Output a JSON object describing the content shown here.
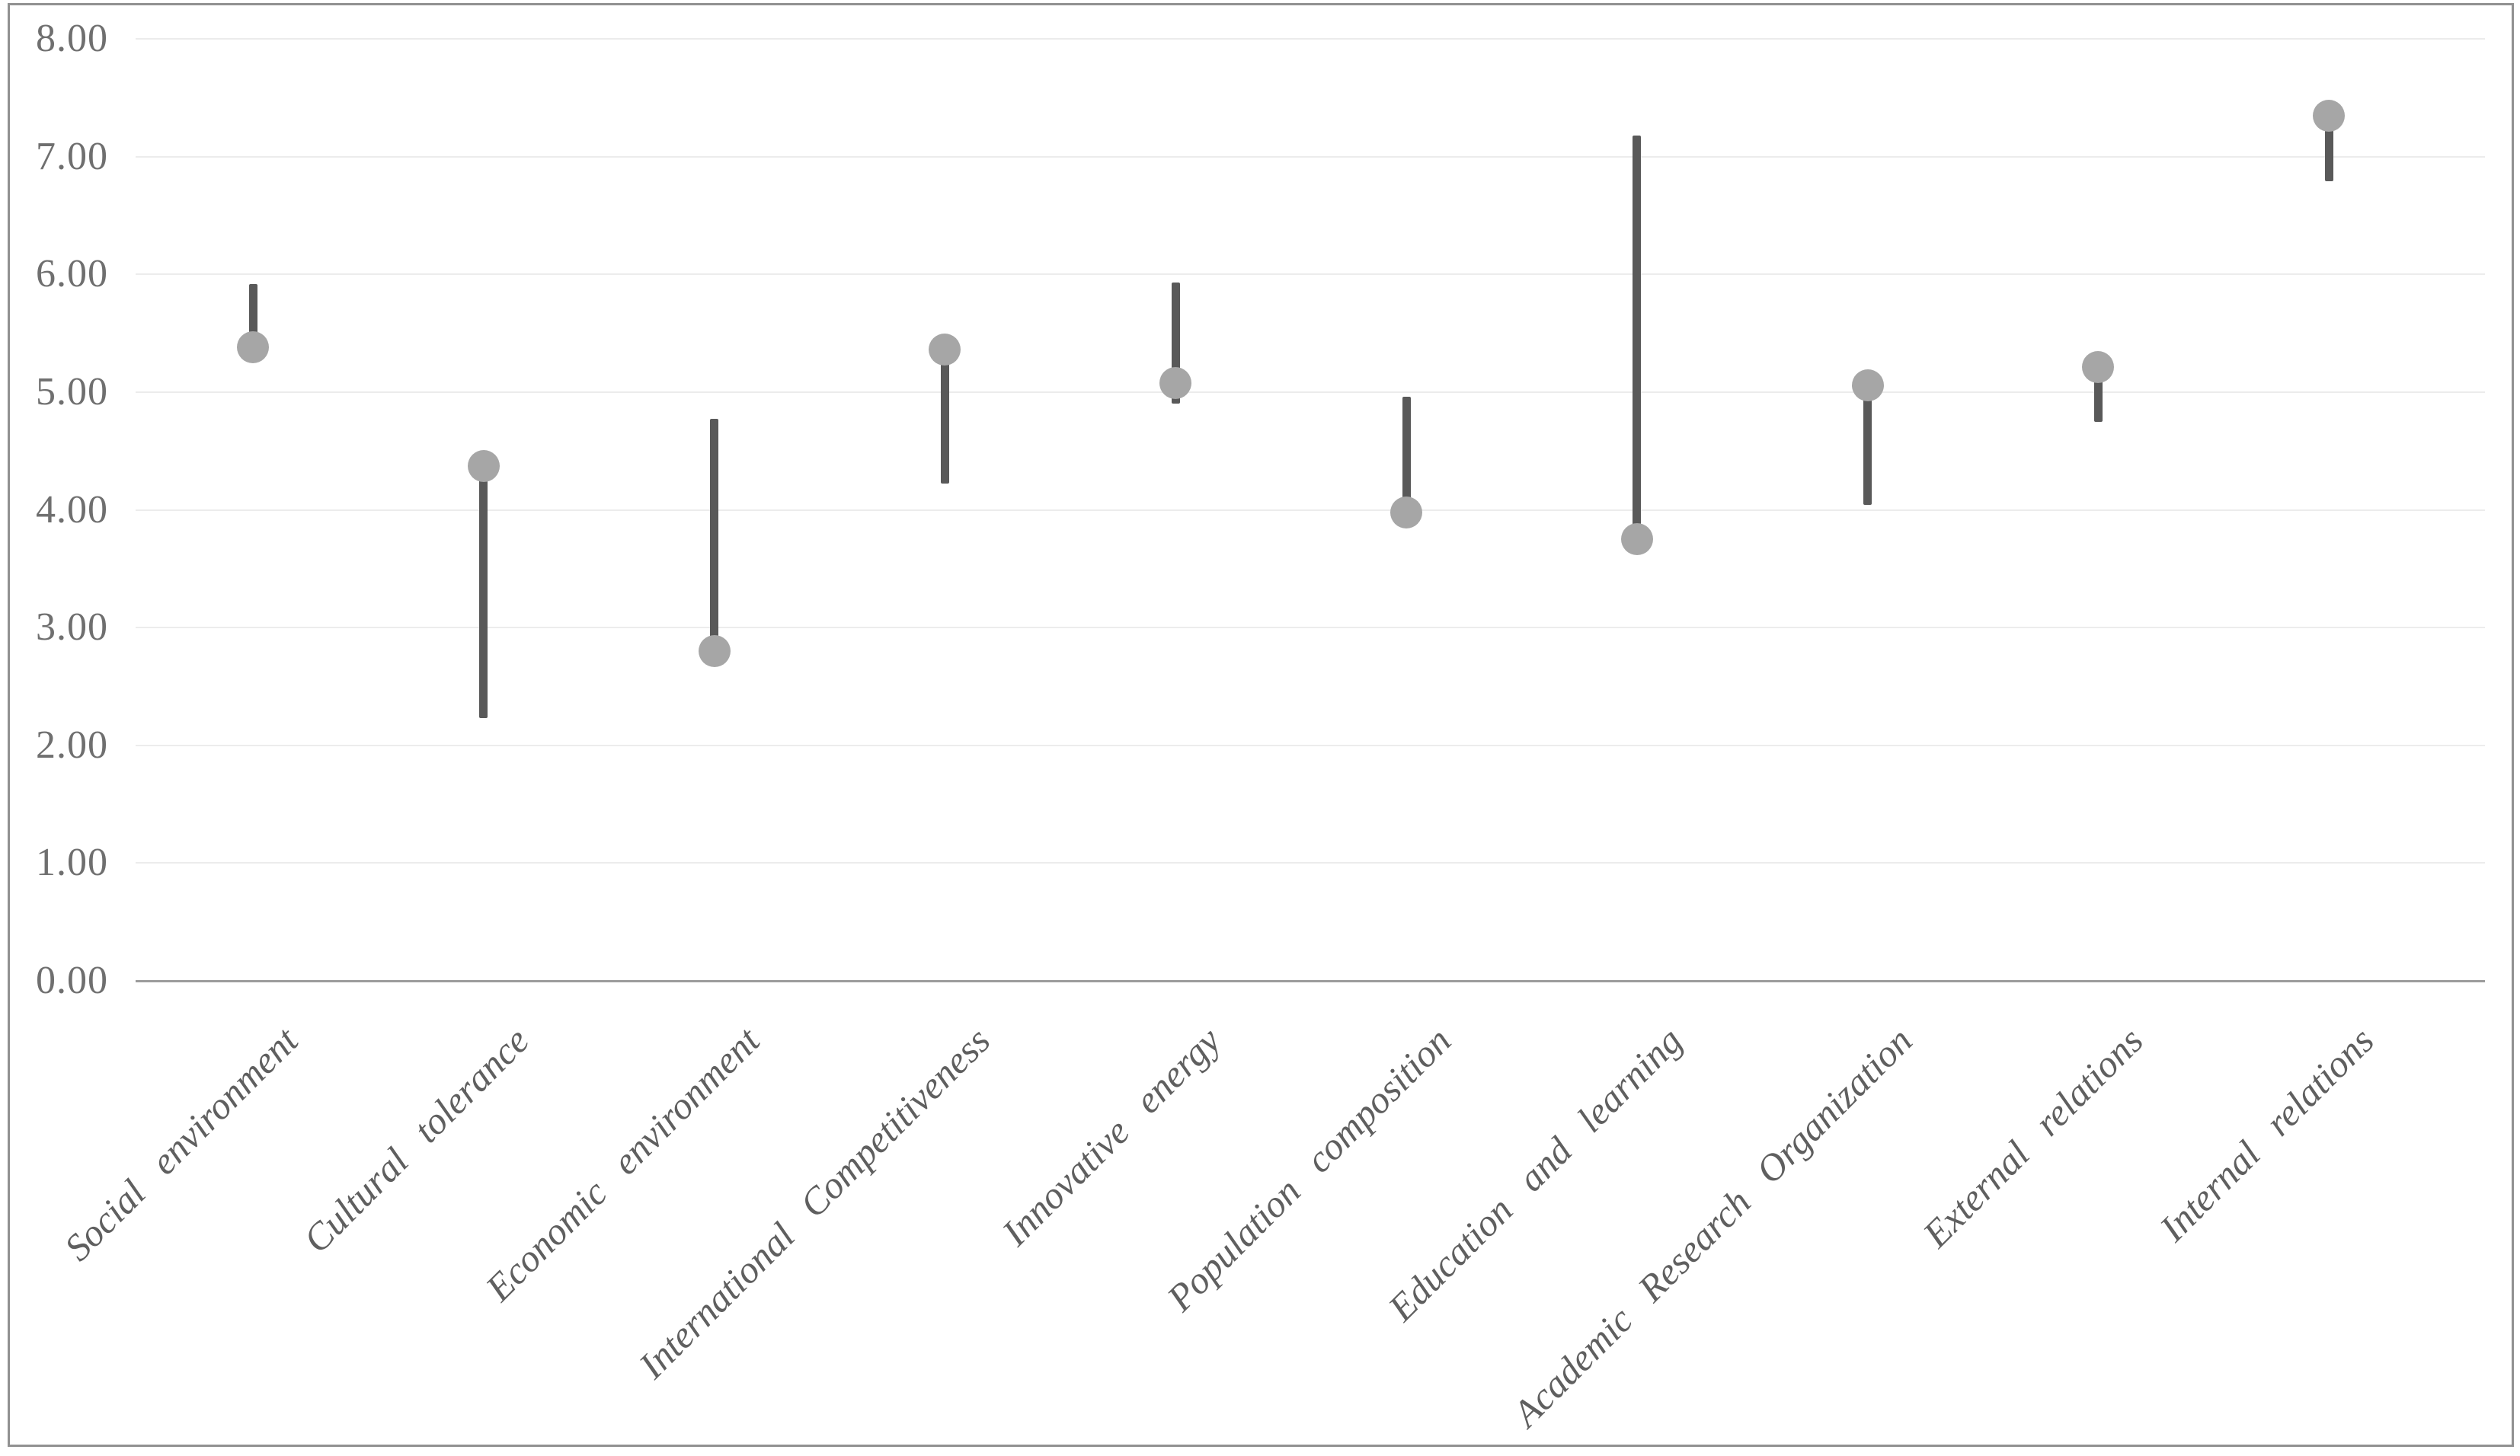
{
  "chart_data": {
    "type": "stock-high-low-with-markers",
    "title": "",
    "xlabel": "",
    "ylabel": "",
    "categories": [
      "Social environment",
      "Cultural tolerance",
      "Economic environment",
      "International Competitiveness",
      "Innovative energy",
      "Population composition",
      "Education and learning",
      "Academic Research Organization",
      "External relations",
      "Internal relations"
    ],
    "series": [
      {
        "name": "high-low-range",
        "type": "hiloline",
        "high": [
          5.92,
          4.37,
          4.77,
          5.36,
          5.93,
          4.96,
          7.18,
          5.06,
          5.21,
          7.35
        ],
        "low": [
          5.38,
          2.23,
          2.8,
          4.22,
          4.9,
          3.98,
          3.75,
          4.04,
          4.75,
          6.79
        ]
      },
      {
        "name": "marker",
        "type": "scatter",
        "values": [
          5.38,
          4.37,
          2.8,
          5.36,
          5.08,
          3.98,
          3.75,
          5.06,
          5.21,
          7.35
        ]
      }
    ],
    "ylim": [
      0,
      8
    ],
    "ytick_step": 1,
    "ytick_labels": [
      "0.00",
      "1.00",
      "2.00",
      "3.00",
      "4.00",
      "5.00",
      "6.00",
      "7.00",
      "8.00"
    ],
    "grid": true,
    "legend": "none"
  },
  "colors": {
    "background": "#ffffff",
    "border": "#919191",
    "gridline": "#ececec",
    "axis_line": "#9c9c9c",
    "range_line": "#595959",
    "marker_fill": "#a6a6a6",
    "tick_text": "#6f6f6f",
    "category_text": "#5f5f5f"
  }
}
